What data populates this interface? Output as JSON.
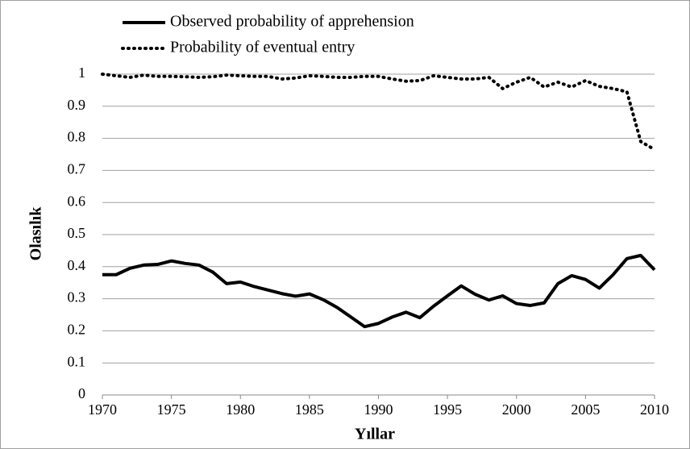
{
  "chart_data": {
    "type": "line",
    "x": [
      1970,
      1971,
      1972,
      1973,
      1974,
      1975,
      1976,
      1977,
      1978,
      1979,
      1980,
      1981,
      1982,
      1983,
      1984,
      1985,
      1986,
      1987,
      1988,
      1989,
      1990,
      1991,
      1992,
      1993,
      1994,
      1995,
      1996,
      1997,
      1998,
      1999,
      2000,
      2001,
      2002,
      2003,
      2004,
      2005,
      2006,
      2007,
      2008,
      2009,
      2010
    ],
    "series": [
      {
        "name": "Observed probability of apprehension",
        "color": "#000000",
        "style": "solid",
        "values": [
          0.375,
          0.375,
          0.395,
          0.405,
          0.407,
          0.418,
          0.41,
          0.405,
          0.383,
          0.347,
          0.352,
          0.338,
          0.327,
          0.316,
          0.308,
          0.315,
          0.297,
          0.273,
          0.243,
          0.213,
          0.223,
          0.243,
          0.258,
          0.241,
          0.277,
          0.309,
          0.34,
          0.314,
          0.296,
          0.309,
          0.285,
          0.279,
          0.287,
          0.347,
          0.372,
          0.36,
          0.333,
          0.375,
          0.425,
          0.435,
          0.39
        ]
      },
      {
        "name": "Probability of eventual entry",
        "color": "#000000",
        "style": "dotted",
        "values": [
          1.0,
          0.995,
          0.99,
          0.997,
          0.993,
          0.993,
          0.992,
          0.99,
          0.992,
          0.997,
          0.995,
          0.993,
          0.993,
          0.985,
          0.988,
          0.995,
          0.993,
          0.99,
          0.99,
          0.993,
          0.993,
          0.985,
          0.978,
          0.98,
          0.995,
          0.99,
          0.985,
          0.985,
          0.99,
          0.955,
          0.975,
          0.99,
          0.96,
          0.975,
          0.96,
          0.98,
          0.962,
          0.955,
          0.945,
          0.79,
          0.765
        ]
      }
    ],
    "xlabel": "Yıllar",
    "ylabel": "Olasılık",
    "xlim": [
      1970,
      2010
    ],
    "xticks": [
      1970,
      1975,
      1980,
      1985,
      1990,
      1995,
      2000,
      2005,
      2010
    ],
    "ylim": [
      0,
      1
    ],
    "yticks": [
      0,
      0.1,
      0.2,
      0.3,
      0.4,
      0.5,
      0.6,
      0.7,
      0.8,
      0.9,
      1
    ],
    "grid": true,
    "legend": "top-left"
  }
}
